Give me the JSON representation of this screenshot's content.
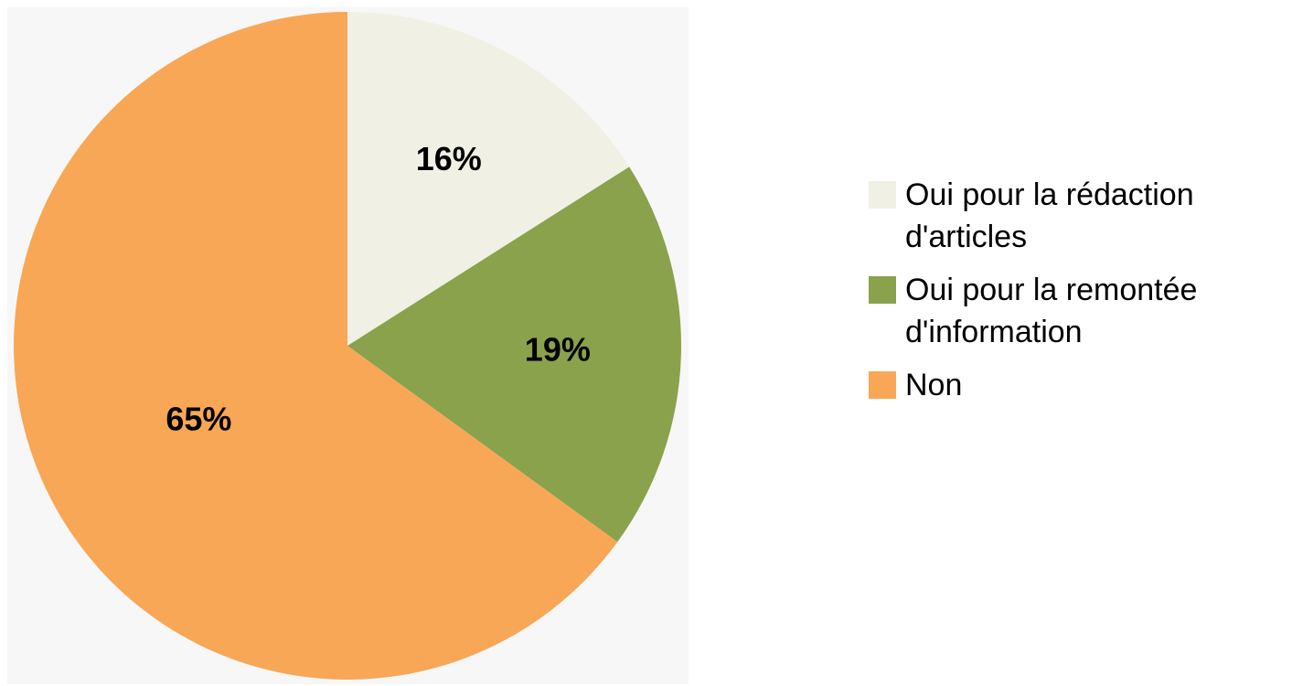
{
  "chart_data": {
    "type": "pie",
    "categories": [
      "Oui pour la rédaction d'articles",
      "Oui pour la remontée d'information",
      "Non"
    ],
    "values": [
      16,
      19,
      65
    ],
    "value_labels": [
      "16%",
      "19%",
      "65%"
    ],
    "colors": [
      "#f0f1e4",
      "#8aa24c",
      "#f8a757"
    ],
    "legend": "right"
  }
}
